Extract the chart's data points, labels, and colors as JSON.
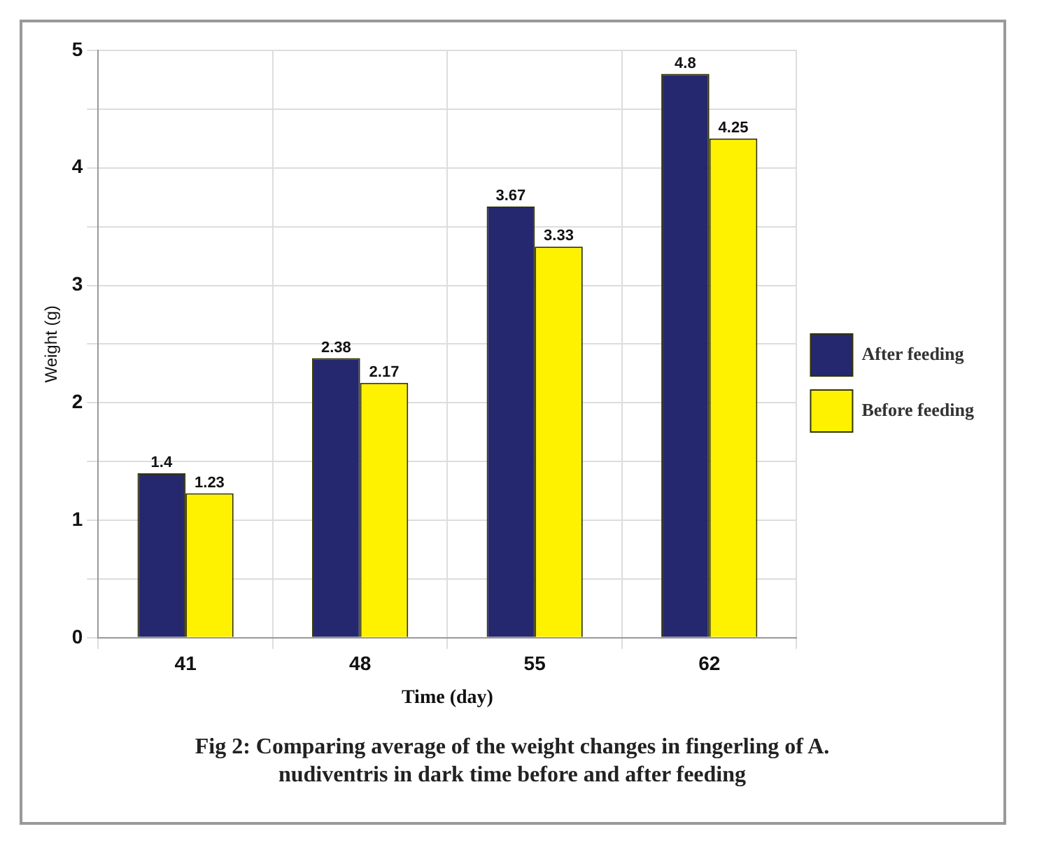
{
  "chart_data": {
    "type": "bar",
    "xlabel": "Time (day)",
    "ylabel": "Weight (g)",
    "categories": [
      "41",
      "48",
      "55",
      "62"
    ],
    "series": [
      {
        "name": "After feeding",
        "color": "#25286e",
        "values": [
          1.4,
          2.38,
          3.67,
          4.8
        ]
      },
      {
        "name": "Before feeding",
        "color": "#fff200",
        "values": [
          1.23,
          2.17,
          3.33,
          4.25
        ]
      }
    ],
    "ylim": [
      0,
      5
    ],
    "yticks": [
      0,
      {
        "value": 0.5,
        "label": null
      },
      1,
      {
        "value": 1.5,
        "label": null
      },
      2,
      {
        "value": 2.5,
        "label": null
      },
      3,
      {
        "value": 3.5,
        "label": null
      },
      4,
      {
        "value": 4.5,
        "label": null
      },
      5
    ],
    "grid": true,
    "legend": "right",
    "data_labels": true,
    "annotations": [
      "Fig 2: Comparing average of the weight changes in fingerling of A. nudiventris in dark time before and after feeding"
    ]
  }
}
